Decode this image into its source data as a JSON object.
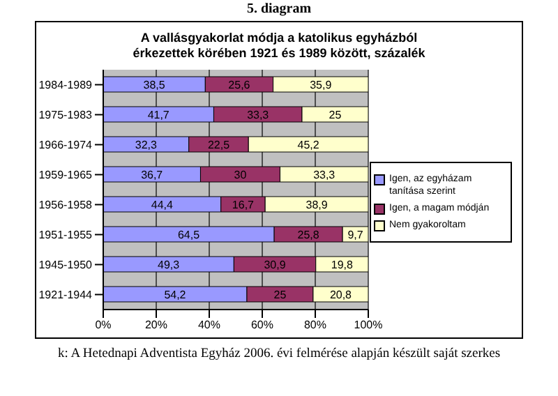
{
  "chart_data": {
    "type": "bar",
    "orientation": "horizontal",
    "stacked": true,
    "title": "A vallásgyakorlat módja a katolikus egyházból érkezettek körében 1921 és 1989 között, százalék",
    "subtitle": "5. diagram",
    "annotations": [
      "k: A Hetednapi Adventista Egyház 2006. évi felmérése alapján készült saját szerkes"
    ],
    "categories": [
      "1984-1989",
      "1975-1983",
      "1966-1974",
      "1959-1965",
      "1956-1958",
      "1951-1955",
      "1945-1950",
      "1921-1944"
    ],
    "series": [
      {
        "name": "Igen, az egyházam tanítása szerint",
        "color": "#9999ff",
        "values": [
          38.5,
          41.7,
          32.3,
          36.7,
          44.4,
          64.5,
          49.3,
          54.2
        ],
        "value_labels": [
          "38,5",
          "41,7",
          "32,3",
          "36,7",
          "44,4",
          "64,5",
          "49,3",
          "54,2"
        ]
      },
      {
        "name": "Igen, a magam módján",
        "color": "#993366",
        "values": [
          25.6,
          33.3,
          22.5,
          30,
          16.7,
          25.8,
          30.9,
          25
        ],
        "value_labels": [
          "25,6",
          "33,3",
          "22,5",
          "30",
          "16,7",
          "25,8",
          "30,9",
          "25"
        ]
      },
      {
        "name": "Nem gyakoroltam",
        "color": "#ffffcc",
        "values": [
          35.9,
          25,
          45.2,
          33.3,
          38.9,
          9.7,
          19.8,
          20.8
        ],
        "value_labels": [
          "35,9",
          "25",
          "45,2",
          "33,3",
          "38,9",
          "9,7",
          "19,8",
          "20,8"
        ]
      }
    ],
    "xlim": [
      0,
      100
    ],
    "xticks": [
      {
        "value": 0,
        "label": "0%"
      },
      {
        "value": 20,
        "label": "20%"
      },
      {
        "value": 40,
        "label": "40%"
      },
      {
        "value": 60,
        "label": "60%"
      },
      {
        "value": 80,
        "label": "80%"
      },
      {
        "value": 100,
        "label": "100%"
      }
    ],
    "grid": "x",
    "legend": "right"
  }
}
